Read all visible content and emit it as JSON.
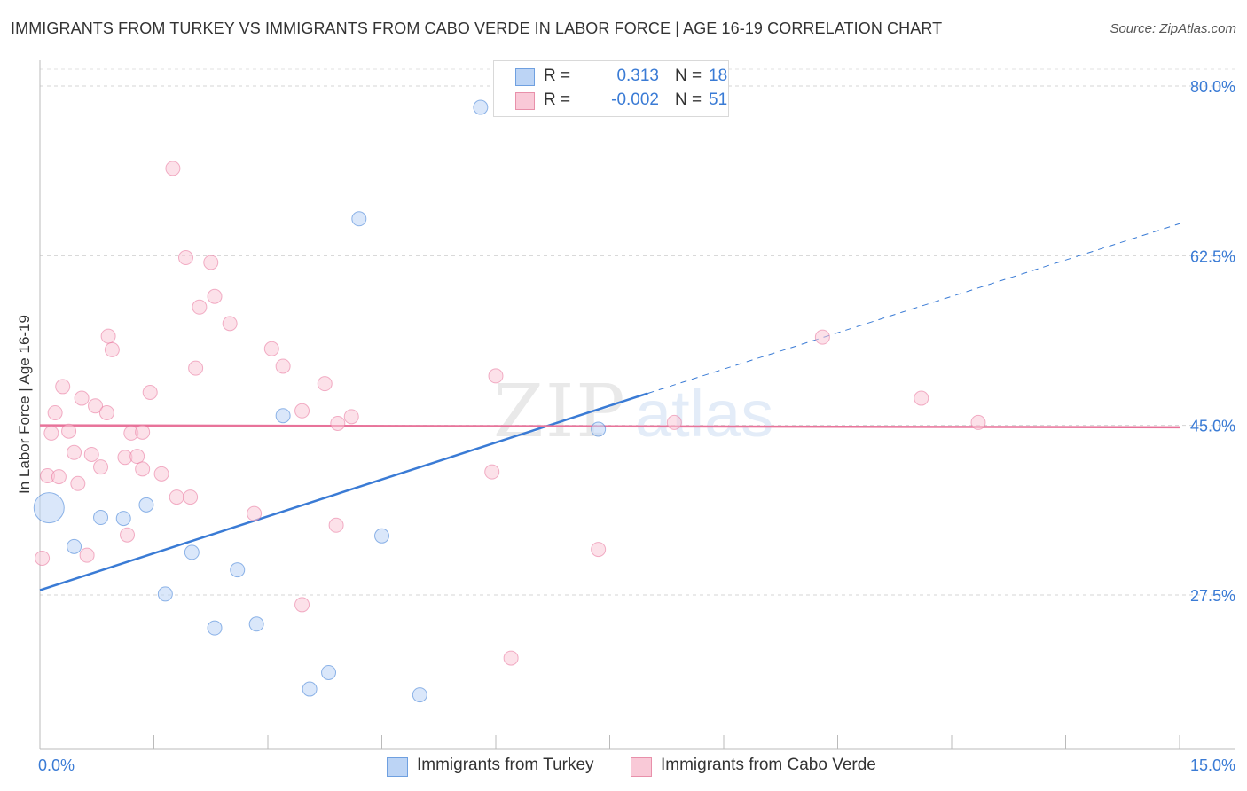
{
  "title": "IMMIGRANTS FROM TURKEY VS IMMIGRANTS FROM CABO VERDE IN LABOR FORCE | AGE 16-19 CORRELATION CHART",
  "source": "Source: ZipAtlas.com",
  "watermark": {
    "bold": "ZIP",
    "light": "atlas"
  },
  "legend": {
    "r_label": "R =",
    "n_label": "N =",
    "rows": [
      {
        "r": "0.313",
        "n": "18",
        "swatch_fill": "#bcd4f5",
        "swatch_border": "#6fa0e0"
      },
      {
        "r": "-0.002",
        "n": "51",
        "swatch_fill": "#f9c9d7",
        "swatch_border": "#e890aa"
      }
    ]
  },
  "chart_data": {
    "type": "scatter",
    "xlabel": "",
    "ylabel": "In Labor Force | Age 16-19",
    "xlim": [
      0,
      15
    ],
    "ylim": [
      11.5,
      82
    ],
    "x_tick_labels": [
      {
        "value": 0,
        "label": "0.0%"
      },
      {
        "value": 15,
        "label": "15.0%"
      }
    ],
    "y_ticks": [
      {
        "value": 80,
        "label": "80.0%"
      },
      {
        "value": 62.5,
        "label": "62.5%"
      },
      {
        "value": 45,
        "label": "45.0%"
      },
      {
        "value": 27.5,
        "label": "27.5%"
      }
    ],
    "x_minor_ticks": [
      0,
      1.5,
      3,
      4.5,
      6,
      7.5,
      9,
      10.5,
      12,
      13.5,
      15
    ],
    "grid": "horizontal dashed",
    "legend_position": "top-center",
    "series": [
      {
        "name": "Immigrants from Turkey",
        "color": "#3a7bd5",
        "fill": "#bcd4f5",
        "r": 0.313,
        "n": 18,
        "trend": {
          "x0": 0,
          "y0": 28.0,
          "x1": 8.0,
          "y1": 48.3,
          "dashed_to": [
            15,
            65.8
          ]
        },
        "points": [
          {
            "x": 0.12,
            "y": 36.5,
            "big": true
          },
          {
            "x": 0.45,
            "y": 32.5
          },
          {
            "x": 0.8,
            "y": 35.5
          },
          {
            "x": 1.1,
            "y": 35.4
          },
          {
            "x": 1.4,
            "y": 36.8
          },
          {
            "x": 1.65,
            "y": 27.6
          },
          {
            "x": 2.0,
            "y": 31.9
          },
          {
            "x": 2.3,
            "y": 24.1
          },
          {
            "x": 2.6,
            "y": 30.1
          },
          {
            "x": 2.85,
            "y": 24.5
          },
          {
            "x": 3.2,
            "y": 46.0
          },
          {
            "x": 3.55,
            "y": 17.8
          },
          {
            "x": 3.8,
            "y": 19.5
          },
          {
            "x": 4.2,
            "y": 66.3
          },
          {
            "x": 4.5,
            "y": 33.6
          },
          {
            "x": 5.0,
            "y": 17.2
          },
          {
            "x": 5.8,
            "y": 77.8
          },
          {
            "x": 7.35,
            "y": 44.6
          }
        ]
      },
      {
        "name": "Immigrants from Cabo Verde",
        "color": "#e8739a",
        "fill": "#f9c9d7",
        "r": -0.002,
        "n": 51,
        "trend": {
          "x0": 0,
          "y0": 45.0,
          "x1": 15,
          "y1": 44.8
        },
        "points": [
          {
            "x": 0.03,
            "y": 31.3
          },
          {
            "x": 0.1,
            "y": 39.8
          },
          {
            "x": 0.15,
            "y": 44.2
          },
          {
            "x": 0.2,
            "y": 46.3
          },
          {
            "x": 0.25,
            "y": 39.7
          },
          {
            "x": 0.3,
            "y": 49.0
          },
          {
            "x": 0.38,
            "y": 44.4
          },
          {
            "x": 0.45,
            "y": 42.2
          },
          {
            "x": 0.5,
            "y": 39.0
          },
          {
            "x": 0.55,
            "y": 47.8
          },
          {
            "x": 0.62,
            "y": 31.6
          },
          {
            "x": 0.68,
            "y": 42.0
          },
          {
            "x": 0.73,
            "y": 47.0
          },
          {
            "x": 0.8,
            "y": 40.7
          },
          {
            "x": 0.88,
            "y": 46.3
          },
          {
            "x": 0.9,
            "y": 54.2
          },
          {
            "x": 0.95,
            "y": 52.8
          },
          {
            "x": 1.12,
            "y": 41.7
          },
          {
            "x": 1.15,
            "y": 33.7
          },
          {
            "x": 1.2,
            "y": 44.2
          },
          {
            "x": 1.28,
            "y": 41.8
          },
          {
            "x": 1.35,
            "y": 40.5
          },
          {
            "x": 1.35,
            "y": 44.3
          },
          {
            "x": 1.45,
            "y": 48.4
          },
          {
            "x": 1.6,
            "y": 40.0
          },
          {
            "x": 1.75,
            "y": 71.5
          },
          {
            "x": 1.8,
            "y": 37.6
          },
          {
            "x": 1.92,
            "y": 62.3
          },
          {
            "x": 1.98,
            "y": 37.6
          },
          {
            "x": 2.05,
            "y": 50.9
          },
          {
            "x": 2.1,
            "y": 57.2
          },
          {
            "x": 2.25,
            "y": 61.8
          },
          {
            "x": 2.3,
            "y": 58.3
          },
          {
            "x": 2.5,
            "y": 55.5
          },
          {
            "x": 2.82,
            "y": 35.9
          },
          {
            "x": 3.05,
            "y": 52.9
          },
          {
            "x": 3.2,
            "y": 51.1
          },
          {
            "x": 3.45,
            "y": 26.5
          },
          {
            "x": 3.45,
            "y": 46.5
          },
          {
            "x": 3.75,
            "y": 49.3
          },
          {
            "x": 3.9,
            "y": 34.7
          },
          {
            "x": 3.92,
            "y": 45.2
          },
          {
            "x": 4.1,
            "y": 45.9
          },
          {
            "x": 5.95,
            "y": 40.2
          },
          {
            "x": 6.0,
            "y": 50.1
          },
          {
            "x": 6.2,
            "y": 21.0
          },
          {
            "x": 7.35,
            "y": 32.2
          },
          {
            "x": 8.35,
            "y": 45.3
          },
          {
            "x": 10.3,
            "y": 54.1
          },
          {
            "x": 11.6,
            "y": 47.8
          },
          {
            "x": 12.35,
            "y": 45.3
          }
        ]
      }
    ]
  }
}
